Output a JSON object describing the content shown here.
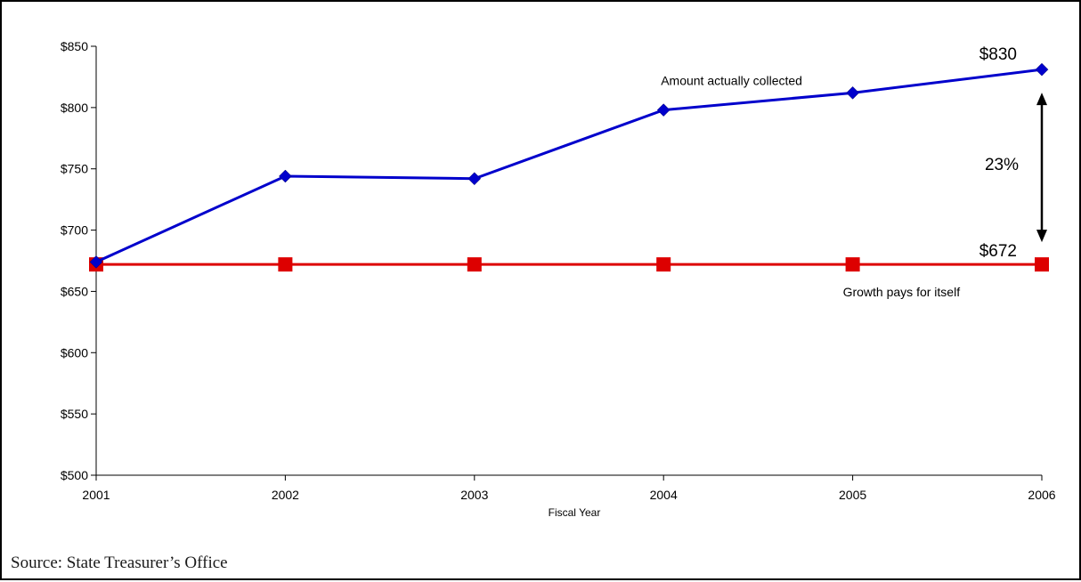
{
  "chart_data": {
    "type": "line",
    "x": [
      2001,
      2002,
      2003,
      2004,
      2005,
      2006
    ],
    "xlabel": "Fiscal Year",
    "ylabel": "",
    "ylim": [
      500,
      850
    ],
    "ytick_step": 50,
    "ytick_prefix": "$",
    "grid": false,
    "series": [
      {
        "name": "Amount actually collected",
        "values": [
          674,
          744,
          742,
          798,
          812,
          831
        ],
        "color": "#0000cc",
        "marker": "diamond"
      },
      {
        "name": "Growth pays for itself",
        "values": [
          672,
          672,
          672,
          672,
          672,
          672
        ],
        "color": "#dd0000",
        "marker": "square"
      }
    ],
    "annotations": {
      "end_label_top": "$830",
      "end_label_bottom": "$672",
      "gap_pct": "23%",
      "gap_from": 831,
      "gap_to": 672
    }
  },
  "source": "Source: State Treasurer’s Office"
}
